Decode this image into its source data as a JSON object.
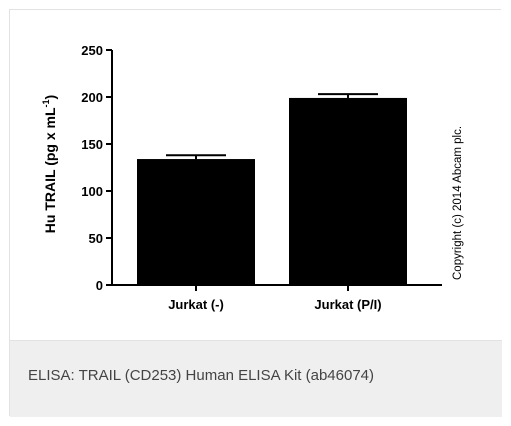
{
  "caption": "ELISA: TRAIL (CD253) Human ELISA Kit (ab46074)",
  "chart_data": {
    "type": "bar",
    "categories": [
      "Jurkat (-)",
      "Jurkat (P/I)"
    ],
    "values": [
      134,
      199
    ],
    "errors": [
      4,
      4
    ],
    "ylabel_main": "Hu TRAIL (pg x mL",
    "ylabel_sup": "-1",
    "ylabel_close": ")",
    "ylim": [
      0,
      250
    ],
    "yticks": [
      0,
      50,
      100,
      150,
      200,
      250
    ],
    "grid": false,
    "bar_color": "#000000",
    "copyright": "Copyright (c) 2014 Abcam plc."
  }
}
